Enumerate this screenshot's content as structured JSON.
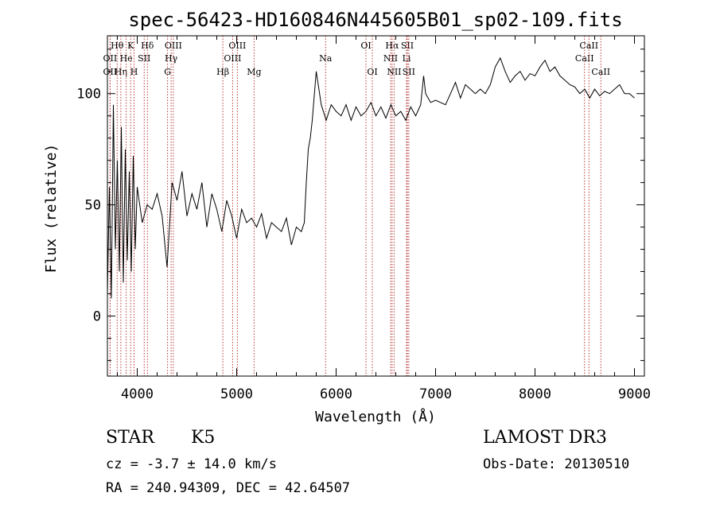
{
  "chart_data": {
    "type": "line",
    "title": "spec-56423-HD160846N445605B01_sp02-109.fits",
    "xlabel": "Wavelength (Å)",
    "ylabel": "Flux (relative)",
    "xlim": [
      3700,
      9100
    ],
    "ylim": [
      -27,
      126
    ],
    "x_ticks": [
      4000,
      5000,
      6000,
      7000,
      8000,
      9000
    ],
    "y_ticks": [
      0,
      50,
      100
    ],
    "grid": false,
    "series": [
      {
        "color": "#000000",
        "points": [
          [
            3700,
            10
          ],
          [
            3720,
            58
          ],
          [
            3740,
            8
          ],
          [
            3760,
            95
          ],
          [
            3780,
            30
          ],
          [
            3800,
            70
          ],
          [
            3820,
            20
          ],
          [
            3840,
            85
          ],
          [
            3860,
            15
          ],
          [
            3880,
            75
          ],
          [
            3900,
            25
          ],
          [
            3920,
            65
          ],
          [
            3940,
            20
          ],
          [
            3960,
            72
          ],
          [
            3980,
            30
          ],
          [
            4000,
            58
          ],
          [
            4050,
            42
          ],
          [
            4100,
            50
          ],
          [
            4150,
            48
          ],
          [
            4200,
            55
          ],
          [
            4250,
            45
          ],
          [
            4300,
            22
          ],
          [
            4350,
            60
          ],
          [
            4400,
            52
          ],
          [
            4450,
            65
          ],
          [
            4500,
            45
          ],
          [
            4550,
            55
          ],
          [
            4600,
            48
          ],
          [
            4650,
            60
          ],
          [
            4700,
            40
          ],
          [
            4750,
            55
          ],
          [
            4800,
            48
          ],
          [
            4850,
            38
          ],
          [
            4900,
            52
          ],
          [
            4950,
            45
          ],
          [
            5000,
            35
          ],
          [
            5050,
            48
          ],
          [
            5100,
            42
          ],
          [
            5150,
            44
          ],
          [
            5200,
            40
          ],
          [
            5250,
            46
          ],
          [
            5300,
            35
          ],
          [
            5350,
            42
          ],
          [
            5400,
            40
          ],
          [
            5450,
            38
          ],
          [
            5500,
            44
          ],
          [
            5550,
            32
          ],
          [
            5600,
            40
          ],
          [
            5650,
            38
          ],
          [
            5680,
            42
          ],
          [
            5700,
            60
          ],
          [
            5720,
            75
          ],
          [
            5740,
            80
          ],
          [
            5760,
            88
          ],
          [
            5800,
            110
          ],
          [
            5850,
            95
          ],
          [
            5900,
            88
          ],
          [
            5950,
            95
          ],
          [
            6000,
            92
          ],
          [
            6050,
            90
          ],
          [
            6100,
            95
          ],
          [
            6150,
            88
          ],
          [
            6200,
            94
          ],
          [
            6250,
            90
          ],
          [
            6300,
            92
          ],
          [
            6350,
            96
          ],
          [
            6400,
            90
          ],
          [
            6450,
            94
          ],
          [
            6500,
            89
          ],
          [
            6550,
            95
          ],
          [
            6600,
            90
          ],
          [
            6650,
            92
          ],
          [
            6700,
            88
          ],
          [
            6750,
            94
          ],
          [
            6800,
            90
          ],
          [
            6850,
            95
          ],
          [
            6880,
            108
          ],
          [
            6900,
            100
          ],
          [
            6950,
            96
          ],
          [
            7000,
            97
          ],
          [
            7050,
            96
          ],
          [
            7100,
            95
          ],
          [
            7150,
            100
          ],
          [
            7200,
            105
          ],
          [
            7250,
            98
          ],
          [
            7300,
            104
          ],
          [
            7350,
            102
          ],
          [
            7400,
            100
          ],
          [
            7450,
            102
          ],
          [
            7500,
            100
          ],
          [
            7550,
            104
          ],
          [
            7600,
            112
          ],
          [
            7650,
            116
          ],
          [
            7700,
            110
          ],
          [
            7750,
            105
          ],
          [
            7800,
            108
          ],
          [
            7850,
            110
          ],
          [
            7900,
            106
          ],
          [
            7950,
            109
          ],
          [
            8000,
            108
          ],
          [
            8050,
            112
          ],
          [
            8100,
            115
          ],
          [
            8150,
            110
          ],
          [
            8200,
            112
          ],
          [
            8250,
            108
          ],
          [
            8300,
            106
          ],
          [
            8350,
            104
          ],
          [
            8400,
            103
          ],
          [
            8450,
            100
          ],
          [
            8500,
            102
          ],
          [
            8550,
            98
          ],
          [
            8600,
            102
          ],
          [
            8650,
            99
          ],
          [
            8700,
            101
          ],
          [
            8750,
            100
          ],
          [
            8800,
            102
          ],
          [
            8850,
            104
          ],
          [
            8900,
            100
          ],
          [
            8950,
            100
          ],
          [
            9000,
            98
          ]
        ]
      }
    ],
    "lines": {
      "color": "#b22222",
      "marks": [
        {
          "label": "Hθ",
          "x": 3798,
          "row": 1
        },
        {
          "label": "OII",
          "x": 3727,
          "row": 2
        },
        {
          "label": "OII",
          "x": 3727,
          "row": 3
        },
        {
          "label": "Hη",
          "x": 3835,
          "row": 3
        },
        {
          "label": "He",
          "x": 3889,
          "row": 2
        },
        {
          "label": "K",
          "x": 3934,
          "row": 1
        },
        {
          "label": "H",
          "x": 3968,
          "row": 3
        },
        {
          "label": "SII",
          "x": 4070,
          "row": 2
        },
        {
          "label": "Hδ",
          "x": 4102,
          "row": 1
        },
        {
          "label": "G",
          "x": 4305,
          "row": 3
        },
        {
          "label": "Hγ",
          "x": 4341,
          "row": 2
        },
        {
          "label": "OIII",
          "x": 4363,
          "row": 1
        },
        {
          "label": "Hβ",
          "x": 4861,
          "row": 3
        },
        {
          "label": "OIII",
          "x": 4959,
          "row": 2
        },
        {
          "label": "OIII",
          "x": 5007,
          "row": 1
        },
        {
          "label": "Mg",
          "x": 5175,
          "row": 3
        },
        {
          "label": "Na",
          "x": 5894,
          "row": 2
        },
        {
          "label": "OI",
          "x": 6300,
          "row": 1
        },
        {
          "label": "OI",
          "x": 6364,
          "row": 3
        },
        {
          "label": "NII",
          "x": 6548,
          "row": 2
        },
        {
          "label": "Hα",
          "x": 6563,
          "row": 1
        },
        {
          "label": "NII",
          "x": 6583,
          "row": 3
        },
        {
          "label": "Li",
          "x": 6708,
          "row": 2
        },
        {
          "label": "SII",
          "x": 6716,
          "row": 1
        },
        {
          "label": "SII",
          "x": 6731,
          "row": 3
        },
        {
          "label": "CaII",
          "x": 8498,
          "row": 2
        },
        {
          "label": "CaII",
          "x": 8542,
          "row": 1
        },
        {
          "label": "CaII",
          "x": 8662,
          "row": 3
        }
      ]
    }
  },
  "footer": {
    "object_class": "STAR",
    "subclass": "K5",
    "cz": "cz = -3.7 ± 14.0 km/s",
    "coords": "RA = 240.94309, DEC =  42.64507",
    "survey": "LAMOST DR3",
    "obs_date": "Obs-Date: 20130510"
  }
}
